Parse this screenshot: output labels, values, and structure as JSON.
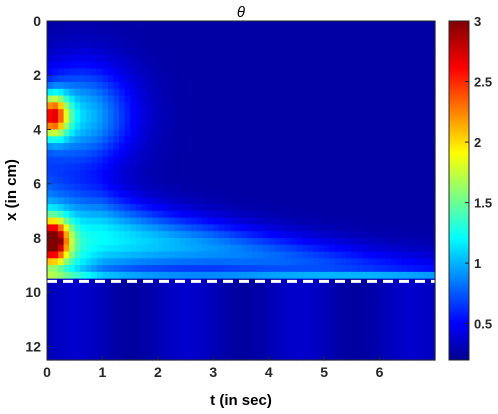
{
  "chart_data": {
    "type": "heatmap",
    "title": "θ",
    "xlabel": "t (in sec)",
    "ylabel": "x (in cm)",
    "xlim": [
      0,
      7
    ],
    "ylim": [
      0,
      12.5
    ],
    "y_reversed": true,
    "xticks": [
      0,
      1,
      2,
      3,
      4,
      5,
      6
    ],
    "yticks": [
      0,
      2,
      4,
      6,
      8,
      10,
      12
    ],
    "colorbar": {
      "colormap": "jet",
      "range": [
        0.2,
        3
      ],
      "ticks": [
        0.5,
        1,
        1.5,
        2,
        2.5,
        3
      ]
    },
    "reference_line": {
      "x_cm": 9.6,
      "style": "dashed",
      "color": "#ffffff"
    },
    "description_values": {
      "hotspots": [
        {
          "t": 0.1,
          "x": 3.5,
          "value": 2.8
        },
        {
          "t": 0.1,
          "x": 8.1,
          "value": 3.0
        }
      ],
      "front_band": [
        {
          "t": 0,
          "x": 8.5
        },
        {
          "t": 1,
          "x": 8.0
        },
        {
          "t": 2,
          "x": 8.2
        },
        {
          "t": 3,
          "x": 8.4
        },
        {
          "t": 4,
          "x": 8.7
        },
        {
          "t": 5,
          "x": 9.0
        },
        {
          "t": 6,
          "x": 9.3
        },
        {
          "t": 6.9,
          "x": 9.5
        }
      ],
      "lower_region_value": 0.35
    }
  }
}
